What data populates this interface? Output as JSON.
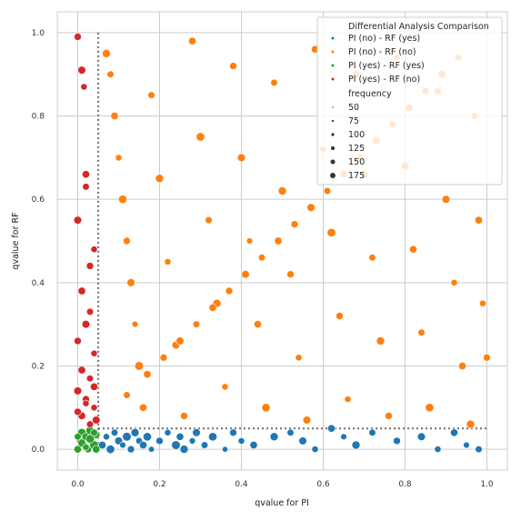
{
  "chart_data": {
    "type": "scatter",
    "title": "",
    "xlabel": "qvalue for PI",
    "ylabel": "qvalue for RF",
    "xlim": [
      -0.05,
      1.05
    ],
    "ylim": [
      -0.05,
      1.05
    ],
    "xticks": [
      "0.0",
      "0.2",
      "0.4",
      "0.6",
      "0.8",
      "1.0"
    ],
    "yticks": [
      "0.0",
      "0.2",
      "0.4",
      "0.6",
      "0.8",
      "1.0"
    ],
    "grid": true,
    "threshold": 0.05,
    "legend": {
      "placement": "top-right",
      "title": "Differential Analysis Comparison",
      "hue_entries": [
        {
          "label": "PI (no)  - RF (yes)",
          "color": "#1f77b4"
        },
        {
          "label": "PI (no)  - RF (no)",
          "color": "#ff7f0e"
        },
        {
          "label": "PI (yes) - RF (yes)",
          "color": "#2ca02c"
        },
        {
          "label": "PI (yes) - RF (no)",
          "color": "#d62728"
        }
      ],
      "size_title": "frequency",
      "size_entries": [
        "50",
        "75",
        "100",
        "125",
        "150",
        "175"
      ]
    },
    "series": [
      {
        "name": "PI (no)  - RF (yes)",
        "color": "#1f77b4",
        "points": [
          [
            0.06,
            0.01,
            120
          ],
          [
            0.07,
            0.03,
            90
          ],
          [
            0.08,
            0.0,
            150
          ],
          [
            0.09,
            0.04,
            100
          ],
          [
            0.1,
            0.02,
            130
          ],
          [
            0.11,
            0.01,
            80
          ],
          [
            0.12,
            0.03,
            160
          ],
          [
            0.13,
            0.0,
            110
          ],
          [
            0.14,
            0.04,
            140
          ],
          [
            0.15,
            0.02,
            95
          ],
          [
            0.16,
            0.01,
            120
          ],
          [
            0.17,
            0.03,
            150
          ],
          [
            0.18,
            0.0,
            75
          ],
          [
            0.2,
            0.02,
            110
          ],
          [
            0.22,
            0.04,
            90
          ],
          [
            0.24,
            0.01,
            160
          ],
          [
            0.25,
            0.03,
            120
          ],
          [
            0.26,
            0.0,
            140
          ],
          [
            0.28,
            0.02,
            85
          ],
          [
            0.29,
            0.04,
            130
          ],
          [
            0.31,
            0.01,
            100
          ],
          [
            0.33,
            0.03,
            150
          ],
          [
            0.36,
            0.0,
            70
          ],
          [
            0.38,
            0.04,
            110
          ],
          [
            0.4,
            0.02,
            90
          ],
          [
            0.43,
            0.01,
            120
          ],
          [
            0.48,
            0.03,
            140
          ],
          [
            0.52,
            0.04,
            100
          ],
          [
            0.55,
            0.02,
            130
          ],
          [
            0.58,
            0.0,
            90
          ],
          [
            0.62,
            0.05,
            120
          ],
          [
            0.65,
            0.03,
            80
          ],
          [
            0.68,
            0.01,
            140
          ],
          [
            0.72,
            0.04,
            100
          ],
          [
            0.78,
            0.02,
            110
          ],
          [
            0.84,
            0.03,
            130
          ],
          [
            0.88,
            0.0,
            90
          ],
          [
            0.92,
            0.04,
            120
          ],
          [
            0.95,
            0.01,
            80
          ],
          [
            0.98,
            0.0,
            100
          ]
        ]
      },
      {
        "name": "PI (no)  - RF (no)",
        "color": "#ff7f0e",
        "points": [
          [
            0.07,
            0.95,
            140
          ],
          [
            0.08,
            0.9,
            100
          ],
          [
            0.09,
            0.8,
            120
          ],
          [
            0.1,
            0.7,
            90
          ],
          [
            0.11,
            0.6,
            150
          ],
          [
            0.12,
            0.5,
            110
          ],
          [
            0.13,
            0.4,
            130
          ],
          [
            0.14,
            0.3,
            80
          ],
          [
            0.15,
            0.2,
            160
          ],
          [
            0.16,
            0.1,
            120
          ],
          [
            0.18,
            0.85,
            100
          ],
          [
            0.2,
            0.65,
            140
          ],
          [
            0.22,
            0.45,
            90
          ],
          [
            0.24,
            0.25,
            130
          ],
          [
            0.26,
            0.08,
            110
          ],
          [
            0.28,
            0.98,
            120
          ],
          [
            0.3,
            0.75,
            150
          ],
          [
            0.32,
            0.55,
            100
          ],
          [
            0.34,
            0.35,
            140
          ],
          [
            0.36,
            0.15,
            90
          ],
          [
            0.38,
            0.92,
            110
          ],
          [
            0.4,
            0.7,
            130
          ],
          [
            0.42,
            0.5,
            80
          ],
          [
            0.44,
            0.3,
            120
          ],
          [
            0.46,
            0.1,
            150
          ],
          [
            0.48,
            0.88,
            100
          ],
          [
            0.5,
            0.62,
            140
          ],
          [
            0.52,
            0.42,
            110
          ],
          [
            0.54,
            0.22,
            90
          ],
          [
            0.56,
            0.07,
            130
          ],
          [
            0.58,
            0.96,
            120
          ],
          [
            0.6,
            0.72,
            100
          ],
          [
            0.62,
            0.52,
            150
          ],
          [
            0.64,
            0.32,
            110
          ],
          [
            0.66,
            0.12,
            90
          ],
          [
            0.68,
            0.9,
            130
          ],
          [
            0.7,
            0.66,
            120
          ],
          [
            0.72,
            0.46,
            100
          ],
          [
            0.74,
            0.26,
            140
          ],
          [
            0.76,
            0.08,
            110
          ],
          [
            0.78,
            0.94,
            90
          ],
          [
            0.8,
            0.68,
            130
          ],
          [
            0.82,
            0.48,
            120
          ],
          [
            0.84,
            0.28,
            100
          ],
          [
            0.86,
            0.1,
            150
          ],
          [
            0.88,
            0.86,
            110
          ],
          [
            0.9,
            0.6,
            130
          ],
          [
            0.92,
            0.4,
            90
          ],
          [
            0.94,
            0.2,
            120
          ],
          [
            0.96,
            0.06,
            140
          ],
          [
            0.97,
            0.8,
            100
          ],
          [
            0.98,
            0.55,
            120
          ],
          [
            0.99,
            0.35,
            90
          ],
          [
            1.0,
            0.22,
            110
          ],
          [
            0.12,
            0.13,
            100
          ],
          [
            0.17,
            0.18,
            120
          ],
          [
            0.21,
            0.22,
            110
          ],
          [
            0.25,
            0.26,
            130
          ],
          [
            0.29,
            0.3,
            100
          ],
          [
            0.33,
            0.34,
            120
          ],
          [
            0.37,
            0.38,
            110
          ],
          [
            0.41,
            0.42,
            130
          ],
          [
            0.45,
            0.46,
            100
          ],
          [
            0.49,
            0.5,
            120
          ],
          [
            0.53,
            0.54,
            110
          ],
          [
            0.57,
            0.58,
            130
          ],
          [
            0.61,
            0.62,
            100
          ],
          [
            0.65,
            0.66,
            120
          ],
          [
            0.69,
            0.7,
            110
          ],
          [
            0.73,
            0.74,
            130
          ],
          [
            0.77,
            0.78,
            100
          ],
          [
            0.81,
            0.82,
            120
          ],
          [
            0.85,
            0.86,
            110
          ],
          [
            0.89,
            0.9,
            130
          ],
          [
            0.93,
            0.94,
            100
          ]
        ]
      },
      {
        "name": "PI (yes) - RF (yes)",
        "color": "#2ca02c",
        "points": [
          [
            0.0,
            0.0,
            120
          ],
          [
            0.005,
            0.02,
            90
          ],
          [
            0.01,
            0.04,
            150
          ],
          [
            0.015,
            0.01,
            100
          ],
          [
            0.02,
            0.03,
            130
          ],
          [
            0.025,
            0.0,
            110
          ],
          [
            0.03,
            0.045,
            140
          ],
          [
            0.035,
            0.02,
            80
          ],
          [
            0.04,
            0.01,
            160
          ],
          [
            0.045,
            0.035,
            120
          ],
          [
            0.0,
            0.03,
            100
          ],
          [
            0.01,
            0.015,
            130
          ],
          [
            0.02,
            0.005,
            90
          ],
          [
            0.03,
            0.025,
            150
          ],
          [
            0.04,
            0.04,
            110
          ],
          [
            0.045,
            0.0,
            120
          ]
        ]
      },
      {
        "name": "PI (yes) - RF (no)",
        "color": "#d62728",
        "points": [
          [
            0.0,
            0.99,
            110
          ],
          [
            0.01,
            0.91,
            130
          ],
          [
            0.015,
            0.87,
            90
          ],
          [
            0.02,
            0.66,
            120
          ],
          [
            0.02,
            0.63,
            100
          ],
          [
            0.0,
            0.55,
            130
          ],
          [
            0.03,
            0.44,
            110
          ],
          [
            0.04,
            0.48,
            90
          ],
          [
            0.01,
            0.38,
            120
          ],
          [
            0.03,
            0.33,
            100
          ],
          [
            0.02,
            0.3,
            130
          ],
          [
            0.0,
            0.26,
            110
          ],
          [
            0.04,
            0.23,
            90
          ],
          [
            0.01,
            0.19,
            120
          ],
          [
            0.03,
            0.17,
            100
          ],
          [
            0.0,
            0.14,
            130
          ],
          [
            0.02,
            0.12,
            110
          ],
          [
            0.04,
            0.1,
            90
          ],
          [
            0.01,
            0.08,
            120
          ],
          [
            0.03,
            0.06,
            100
          ],
          [
            0.045,
            0.07,
            130
          ],
          [
            0.0,
            0.09,
            110
          ],
          [
            0.02,
            0.11,
            90
          ],
          [
            0.04,
            0.15,
            120
          ]
        ]
      }
    ]
  }
}
